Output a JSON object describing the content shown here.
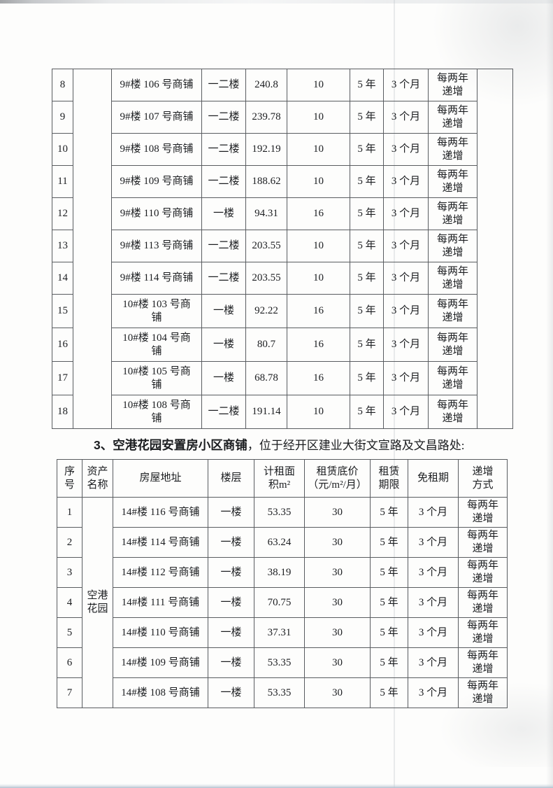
{
  "heading": {
    "number": "3、",
    "bold": "空港花园安置房小区商铺",
    "rest": "，位于经开区建业大街文宣路及文昌路处:"
  },
  "table1": {
    "asset_name": "",
    "trailing_blank": "",
    "rows": [
      {
        "no": "8",
        "address": "9#楼 106 号商铺",
        "floor": "一二楼",
        "area": "240.8",
        "price": "10",
        "term": "5 年",
        "free": "3 个月",
        "increase": "每两年\n递增"
      },
      {
        "no": "9",
        "address": "9#楼 107 号商铺",
        "floor": "一二楼",
        "area": "239.78",
        "price": "10",
        "term": "5 年",
        "free": "3 个月",
        "increase": "每两年\n递增"
      },
      {
        "no": "10",
        "address": "9#楼 108 号商铺",
        "floor": "一二楼",
        "area": "192.19",
        "price": "10",
        "term": "5 年",
        "free": "3 个月",
        "increase": "每两年\n递增"
      },
      {
        "no": "11",
        "address": "9#楼 109 号商铺",
        "floor": "一二楼",
        "area": "188.62",
        "price": "10",
        "term": "5 年",
        "free": "3 个月",
        "increase": "每两年\n递增"
      },
      {
        "no": "12",
        "address": "9#楼 110 号商铺",
        "floor": "一楼",
        "area": "94.31",
        "price": "16",
        "term": "5 年",
        "free": "3 个月",
        "increase": "每两年\n递增"
      },
      {
        "no": "13",
        "address": "9#楼 113 号商铺",
        "floor": "一二楼",
        "area": "203.55",
        "price": "10",
        "term": "5 年",
        "free": "3 个月",
        "increase": "每两年\n递增"
      },
      {
        "no": "14",
        "address": "9#楼 114 号商铺",
        "floor": "一二楼",
        "area": "203.55",
        "price": "10",
        "term": "5 年",
        "free": "3 个月",
        "increase": "每两年\n递增"
      },
      {
        "no": "15",
        "address": "10#楼 103 号商\n铺",
        "floor": "一楼",
        "area": "92.22",
        "price": "16",
        "term": "5 年",
        "free": "3 个月",
        "increase": "每两年\n递增"
      },
      {
        "no": "16",
        "address": "10#楼 104 号商\n铺",
        "floor": "一楼",
        "area": "80.7",
        "price": "16",
        "term": "5 年",
        "free": "3 个月",
        "increase": "每两年\n递增"
      },
      {
        "no": "17",
        "address": "10#楼 105 号商\n铺",
        "floor": "一楼",
        "area": "68.78",
        "price": "16",
        "term": "5 年",
        "free": "3 个月",
        "increase": "每两年\n递增"
      },
      {
        "no": "18",
        "address": "10#楼 108 号商\n铺",
        "floor": "一二楼",
        "area": "191.14",
        "price": "10",
        "term": "5 年",
        "free": "3 个月",
        "increase": "每两年\n递增"
      }
    ]
  },
  "table2": {
    "headers": [
      "序\n号",
      "资产\n名称",
      "房屋地址",
      "楼层",
      "计租面\n积m²",
      "租赁底价\n（元/m²/月）",
      "租赁\n期限",
      "免租期",
      "递增\n方式"
    ],
    "asset_name": "空港\n花园",
    "rows": [
      {
        "no": "1",
        "address": "14#楼 116 号商铺",
        "floor": "一楼",
        "area": "53.35",
        "price": "30",
        "term": "5 年",
        "free": "3 个月",
        "increase": "每两年\n递增"
      },
      {
        "no": "2",
        "address": "14#楼 114 号商铺",
        "floor": "一楼",
        "area": "63.24",
        "price": "30",
        "term": "5 年",
        "free": "3 个月",
        "increase": "每两年\n递增"
      },
      {
        "no": "3",
        "address": "14#楼 112 号商铺",
        "floor": "一楼",
        "area": "38.19",
        "price": "30",
        "term": "5 年",
        "free": "3 个月",
        "increase": "每两年\n递增"
      },
      {
        "no": "4",
        "address": "14#楼 111 号商铺",
        "floor": "一楼",
        "area": "70.75",
        "price": "30",
        "term": "5 年",
        "free": "3 个月",
        "increase": "每两年\n递增"
      },
      {
        "no": "5",
        "address": "14#楼 110 号商铺",
        "floor": "一楼",
        "area": "37.31",
        "price": "30",
        "term": "5 年",
        "free": "3 个月",
        "increase": "每两年\n递增"
      },
      {
        "no": "6",
        "address": "14#楼 109 号商铺",
        "floor": "一楼",
        "area": "53.35",
        "price": "30",
        "term": "5 年",
        "free": "3 个月",
        "increase": "每两年\n递增"
      },
      {
        "no": "7",
        "address": "14#楼 108 号商铺",
        "floor": "一楼",
        "area": "53.35",
        "price": "30",
        "term": "5 年",
        "free": "3 个月",
        "increase": "每两年\n递增"
      }
    ]
  },
  "colors": {
    "border": "#595c60",
    "text": "#1b1d20",
    "bottom_edge": "#b3c2cf"
  }
}
